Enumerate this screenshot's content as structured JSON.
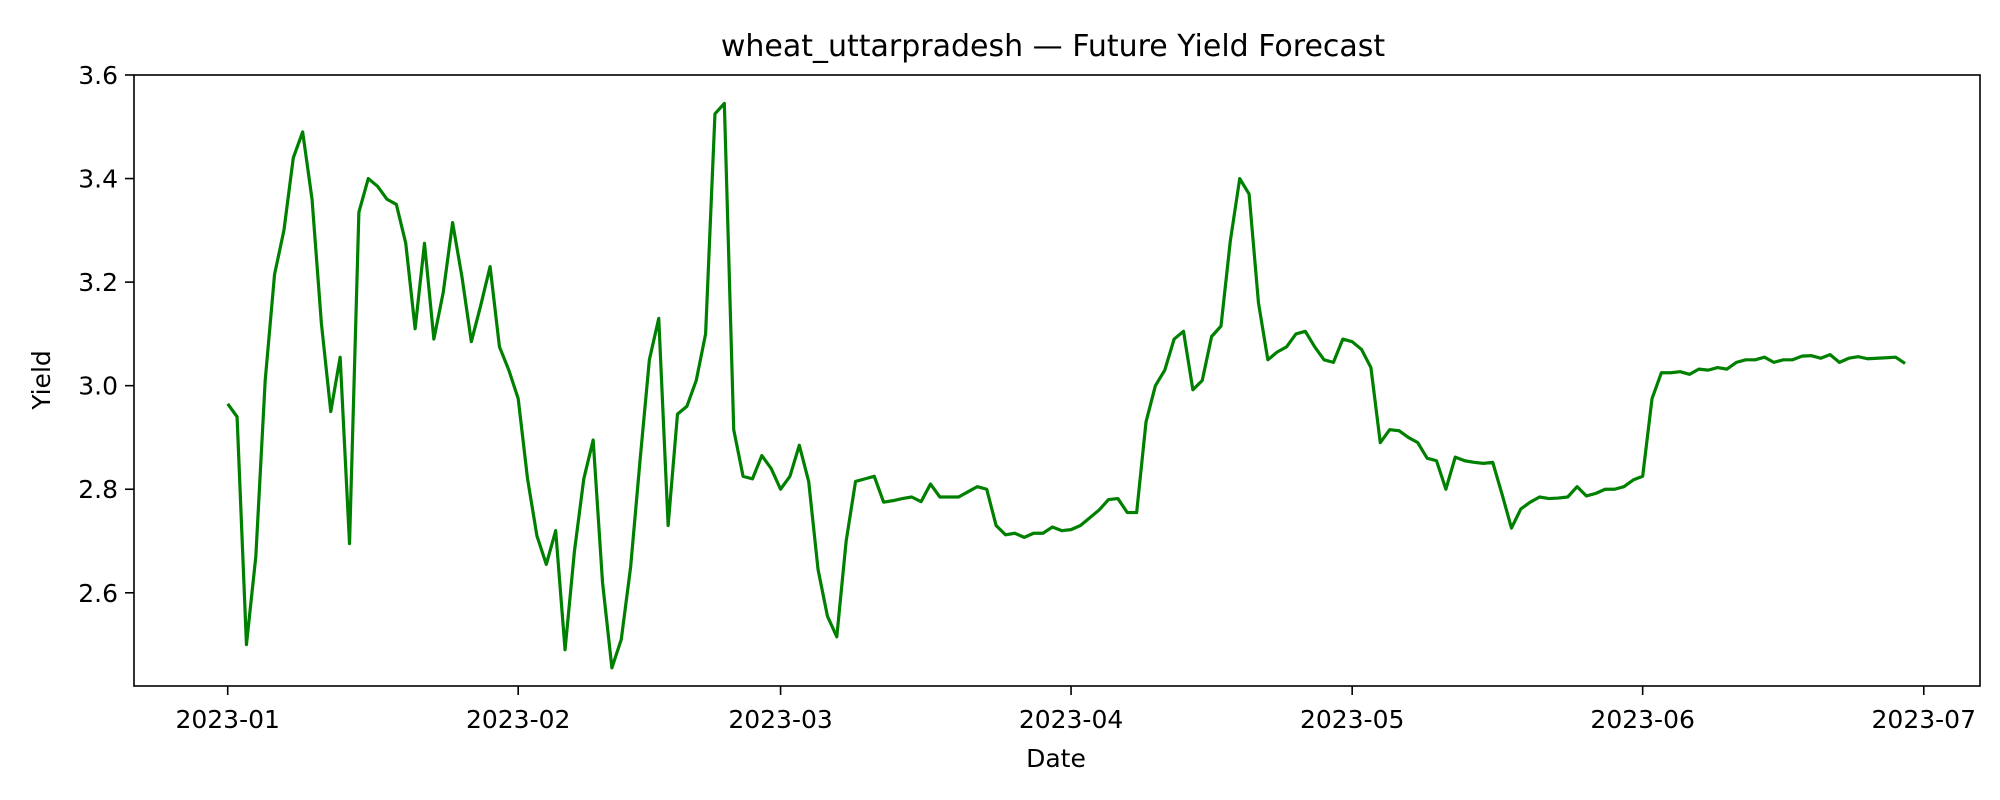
{
  "chart_data": {
    "type": "line",
    "title": "wheat_uttarpradesh — Future Yield Forecast",
    "xlabel": "Date",
    "ylabel": "Yield",
    "x_start": "2023-01-01",
    "x_tick_labels": [
      "2023-01",
      "2023-02",
      "2023-03",
      "2023-04",
      "2023-05",
      "2023-06",
      "2023-07"
    ],
    "x_tick_dates": [
      "2023-01-01",
      "2023-02-01",
      "2023-03-01",
      "2023-04-01",
      "2023-05-01",
      "2023-06-01",
      "2023-07-01"
    ],
    "xlim": [
      "2022-12-22",
      "2023-07-07"
    ],
    "ylim": [
      2.42,
      3.6
    ],
    "y_ticks": [
      2.6,
      2.8,
      3.0,
      3.2,
      3.4,
      3.6
    ],
    "y_tick_labels": [
      "2.6",
      "2.8",
      "3.0",
      "3.2",
      "3.4",
      "3.6"
    ],
    "grid": false,
    "series": [
      {
        "color": "#008000",
        "values": [
          2.965,
          2.94,
          2.5,
          2.67,
          3.01,
          3.215,
          3.3,
          3.44,
          3.49,
          3.36,
          3.12,
          2.95,
          3.055,
          2.695,
          3.335,
          3.4,
          3.385,
          3.36,
          3.35,
          3.275,
          3.11,
          3.275,
          3.09,
          3.18,
          3.315,
          3.21,
          3.085,
          3.155,
          3.23,
          3.075,
          3.03,
          2.975,
          2.82,
          2.71,
          2.655,
          2.72,
          2.49,
          2.68,
          2.82,
          2.895,
          2.62,
          2.455,
          2.51,
          2.65,
          2.855,
          3.05,
          3.13,
          2.73,
          2.945,
          2.96,
          3.01,
          3.1,
          3.525,
          3.545,
          2.915,
          2.825,
          2.82,
          2.865,
          2.84,
          2.8,
          2.825,
          2.885,
          2.815,
          2.645,
          2.555,
          2.515,
          2.7,
          2.815,
          2.82,
          2.825,
          2.775,
          2.778,
          2.782,
          2.785,
          2.776,
          2.81,
          2.785,
          2.785,
          2.785,
          2.795,
          2.805,
          2.8,
          2.73,
          2.712,
          2.715,
          2.707,
          2.715,
          2.715,
          2.727,
          2.72,
          2.722,
          2.73,
          2.745,
          2.76,
          2.78,
          2.782,
          2.755,
          2.755,
          2.93,
          3.0,
          3.03,
          3.09,
          3.105,
          2.992,
          3.01,
          3.095,
          3.115,
          3.28,
          3.4,
          3.37,
          3.16,
          3.05,
          3.065,
          3.075,
          3.1,
          3.105,
          3.075,
          3.05,
          3.045,
          3.09,
          3.085,
          3.07,
          3.035,
          2.89,
          2.915,
          2.913,
          2.9,
          2.89,
          2.86,
          2.855,
          2.8,
          2.862,
          2.855,
          2.852,
          2.85,
          2.852,
          2.79,
          2.725,
          2.762,
          2.775,
          2.785,
          2.782,
          2.783,
          2.785,
          2.805,
          2.787,
          2.792,
          2.8,
          2.8,
          2.805,
          2.818,
          2.825,
          2.975,
          3.025,
          3.025,
          3.027,
          3.022,
          3.032,
          3.03,
          3.035,
          3.032,
          3.045,
          3.05,
          3.05,
          3.055,
          3.045,
          3.05,
          3.05,
          3.057,
          3.058,
          3.053,
          3.06,
          3.045,
          3.053,
          3.056,
          3.052,
          3.053,
          3.054,
          3.055,
          3.043
        ]
      }
    ]
  }
}
